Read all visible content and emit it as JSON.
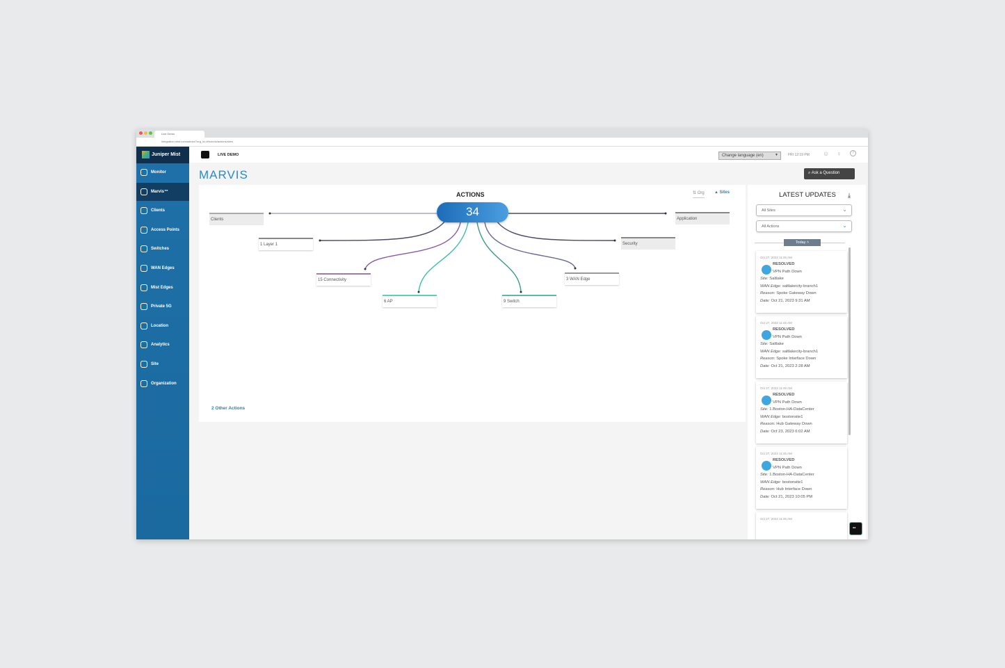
{
  "browser": {
    "tab_title": "Live Demo",
    "url": "integration.mist.com/admin/?org_id=#!marvis/actions/sites"
  },
  "sidebar": {
    "brand": "Juniper Mist",
    "items": [
      {
        "label": "Monitor",
        "icon": "monitor-icon"
      },
      {
        "label": "Marvis™",
        "icon": "marvis-icon",
        "active": true
      },
      {
        "label": "Clients",
        "icon": "clients-icon"
      },
      {
        "label": "Access Points",
        "icon": "access-point-icon"
      },
      {
        "label": "Switches",
        "icon": "switch-icon"
      },
      {
        "label": "WAN Edges",
        "icon": "wan-edge-icon"
      },
      {
        "label": "Mist Edges",
        "icon": "mist-edge-icon"
      },
      {
        "label": "Private 5G",
        "icon": "private-5g-icon"
      },
      {
        "label": "Location",
        "icon": "location-icon"
      },
      {
        "label": "Analytics",
        "icon": "analytics-icon"
      },
      {
        "label": "Site",
        "icon": "site-icon"
      },
      {
        "label": "Organization",
        "icon": "organization-icon"
      }
    ]
  },
  "header": {
    "org_label": "LIVE DEMO",
    "language": "Change language (en)",
    "time": "FRI 12:19 PM"
  },
  "page": {
    "title": "MARVIS",
    "ask_button": "Ask a Question"
  },
  "actions": {
    "title": "ACTIONS",
    "total": "34",
    "org_toggle": "Org",
    "sites_toggle": "Sites",
    "other_actions": "2 Other Actions",
    "nodes": {
      "clients": "Clients",
      "layer1": "1 Layer 1",
      "connectivity": "15 Connectivity",
      "ap": "6 AP",
      "switch": "9 Switch",
      "wan_edge": "3 WAN Edge",
      "security": "Security",
      "application": "Application"
    }
  },
  "colors": {
    "accent": "#2a7fc4",
    "sidebar": "#1f70a8",
    "teal": "#3cc0a8",
    "purple": "#8a5aa8"
  },
  "updates": {
    "title": "LATEST UPDATES",
    "site_filter": "All Sites",
    "action_filter": "All Actions",
    "group": "Today",
    "items": [
      {
        "timestamp": "Oct 27, 2023 11:45 AM",
        "status": "RESOLVED",
        "event": "VPN Path Down",
        "site": "Saltlake",
        "wan_edge": "saltlakecity-branch1",
        "reason": "Spoke Gateway Down",
        "date": "Oct 21, 2023 9:31 AM"
      },
      {
        "timestamp": "Oct 27, 2023 11:45 AM",
        "status": "RESOLVED",
        "event": "VPN Path Down",
        "site": "Saltlake",
        "wan_edge": "saltlakecity-branch1",
        "reason": "Spoke Interface Down",
        "date": "Oct 21, 2023 2:28 AM"
      },
      {
        "timestamp": "Oct 27, 2023 11:45 AM",
        "status": "RESOLVED",
        "event": "VPN Path Down",
        "site": "1.Boston-HA-DataCenter",
        "wan_edge": "bostonsite1",
        "reason": "Hub Gateway Down",
        "date": "Oct 23, 2023 6:02 AM"
      },
      {
        "timestamp": "Oct 27, 2023 11:45 AM",
        "status": "RESOLVED",
        "event": "VPN Path Down",
        "site": "1.Boston-HA-DataCenter",
        "wan_edge": "bostonsite1",
        "reason": "Hub Interface Down",
        "date": "Oct 21, 2023 10:05 PM"
      },
      {
        "timestamp": "Oct 27, 2023 11:45 AM"
      }
    ],
    "labels": {
      "site": "Site:",
      "wan_edge": "WAN Edge:",
      "reason": "Reason:",
      "date": "Date:"
    }
  }
}
